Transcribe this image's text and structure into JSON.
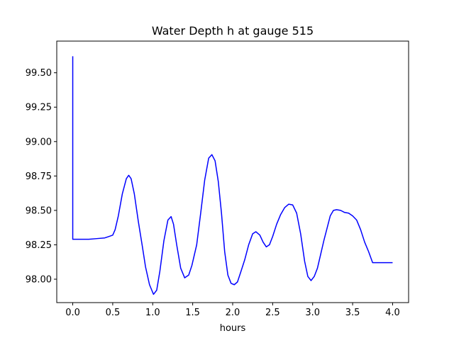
{
  "chart_data": {
    "type": "line",
    "title": "Water Depth h at gauge 515",
    "xlabel": "hours",
    "ylabel": "",
    "xlim": [
      -0.2,
      4.2
    ],
    "ylim": [
      97.83,
      99.73
    ],
    "xticks": [
      0.0,
      0.5,
      1.0,
      1.5,
      2.0,
      2.5,
      3.0,
      3.5,
      4.0
    ],
    "xtick_labels": [
      "0.0",
      "0.5",
      "1.0",
      "1.5",
      "2.0",
      "2.5",
      "3.0",
      "3.5",
      "4.0"
    ],
    "yticks": [
      98.0,
      98.25,
      98.5,
      98.75,
      99.0,
      99.25,
      99.5
    ],
    "ytick_labels": [
      "98.00",
      "98.25",
      "98.50",
      "98.75",
      "99.00",
      "99.25",
      "99.50"
    ],
    "grid": false,
    "series": [
      {
        "color": "#0000ff",
        "x": [
          0.0,
          0.0,
          0.0,
          0.1,
          0.2,
          0.3,
          0.4,
          0.45,
          0.5,
          0.53,
          0.57,
          0.62,
          0.67,
          0.7,
          0.73,
          0.77,
          0.82,
          0.87,
          0.91,
          0.96,
          1.01,
          1.05,
          1.09,
          1.14,
          1.19,
          1.23,
          1.26,
          1.3,
          1.35,
          1.4,
          1.45,
          1.49,
          1.55,
          1.6,
          1.65,
          1.7,
          1.74,
          1.78,
          1.82,
          1.86,
          1.9,
          1.94,
          1.98,
          2.02,
          2.06,
          2.1,
          2.15,
          2.2,
          2.25,
          2.29,
          2.34,
          2.38,
          2.42,
          2.46,
          2.5,
          2.55,
          2.6,
          2.65,
          2.7,
          2.75,
          2.8,
          2.85,
          2.9,
          2.94,
          2.98,
          3.02,
          3.06,
          3.1,
          3.14,
          3.18,
          3.22,
          3.26,
          3.3,
          3.35,
          3.4,
          3.45,
          3.5,
          3.55,
          3.6,
          3.65,
          3.7,
          3.75,
          3.8,
          3.85,
          3.9,
          3.95,
          4.0
        ],
        "y": [
          99.62,
          98.29,
          98.29,
          98.29,
          98.29,
          98.295,
          98.3,
          98.31,
          98.32,
          98.36,
          98.46,
          98.62,
          98.73,
          98.755,
          98.73,
          98.62,
          98.42,
          98.24,
          98.09,
          97.96,
          97.89,
          97.92,
          98.06,
          98.28,
          98.43,
          98.455,
          98.4,
          98.25,
          98.08,
          98.01,
          98.03,
          98.1,
          98.25,
          98.48,
          98.72,
          98.88,
          98.905,
          98.86,
          98.71,
          98.48,
          98.2,
          98.03,
          97.97,
          97.96,
          97.98,
          98.05,
          98.14,
          98.25,
          98.33,
          98.345,
          98.32,
          98.27,
          98.235,
          98.25,
          98.31,
          98.4,
          98.47,
          98.52,
          98.545,
          98.54,
          98.48,
          98.33,
          98.13,
          98.02,
          97.99,
          98.02,
          98.08,
          98.18,
          98.28,
          98.37,
          98.46,
          98.5,
          98.505,
          98.5,
          98.485,
          98.48,
          98.46,
          98.43,
          98.36,
          98.27,
          98.2,
          98.12,
          98.12,
          98.12,
          98.12,
          98.12,
          98.12
        ]
      }
    ]
  }
}
